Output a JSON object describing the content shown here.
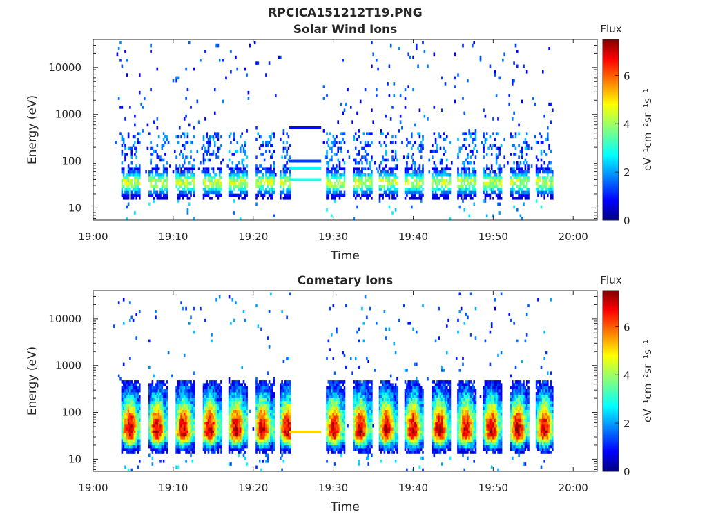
{
  "figure_title": "RPCICA151212T19.PNG",
  "chart_data": [
    {
      "type": "heatmap",
      "title": "Solar Wind Ions",
      "xlabel": "Time",
      "ylabel": "Energy (eV)",
      "x_ticks": [
        "19:00",
        "19:10",
        "19:20",
        "19:30",
        "19:40",
        "19:50",
        "20:00"
      ],
      "x_range_minutes": [
        0,
        63
      ],
      "y_scale": "log",
      "y_ticks": [
        {
          "value": 10,
          "label": "10"
        },
        {
          "value": 100,
          "label": "100"
        },
        {
          "value": 1000,
          "label": "1000"
        },
        {
          "value": 10000,
          "label": "10000"
        }
      ],
      "y_range": [
        5.5,
        40000
      ],
      "colorbar": {
        "title": "Flux",
        "label": "eV⁻¹cm⁻²sr⁻¹s⁻¹",
        "ticks": [
          "0",
          "2",
          "4",
          "6"
        ],
        "range": [
          0,
          7.5
        ],
        "colormap": "jet"
      },
      "data_window_minutes": [
        2.5,
        57.5
      ],
      "gap_minutes": [
        24.5,
        28.5
      ],
      "peak_energy_eV": 35,
      "bursts_start_minutes": [
        3.5,
        6.9,
        10.2,
        13.5,
        16.8,
        20.1,
        23.2,
        29.0,
        32.3,
        35.6,
        38.9,
        42.2,
        45.5,
        48.7,
        52.0,
        55.3
      ],
      "gap_lines": [
        {
          "energy_eV": 520,
          "level": 1.0
        },
        {
          "energy_eV": 100,
          "level": 1.4
        },
        {
          "energy_eV": 70,
          "level": 2.8
        },
        {
          "energy_eV": 40,
          "level": 3.0
        }
      ],
      "seed": 7
    },
    {
      "type": "heatmap",
      "title": "Cometary Ions",
      "xlabel": "Time",
      "ylabel": "Energy (eV)",
      "x_ticks": [
        "19:00",
        "19:10",
        "19:20",
        "19:30",
        "19:40",
        "19:50",
        "20:00"
      ],
      "x_range_minutes": [
        0,
        63
      ],
      "y_scale": "log",
      "y_ticks": [
        {
          "value": 10,
          "label": "10"
        },
        {
          "value": 100,
          "label": "100"
        },
        {
          "value": 1000,
          "label": "1000"
        },
        {
          "value": 10000,
          "label": "10000"
        }
      ],
      "y_range": [
        5.5,
        40000
      ],
      "colorbar": {
        "title": "Flux",
        "label": "eV⁻¹cm⁻²sr⁻¹s⁻¹",
        "ticks": [
          "0",
          "2",
          "4",
          "6"
        ],
        "range": [
          0,
          7.5
        ],
        "colormap": "jet"
      },
      "data_window_minutes": [
        2.5,
        57.5
      ],
      "gap_minutes": [
        24.5,
        28.5
      ],
      "peak_energy_eV": 35,
      "bursts_start_minutes": [
        3.5,
        6.9,
        10.2,
        13.5,
        16.8,
        20.1,
        23.2,
        29.0,
        32.3,
        35.6,
        38.9,
        42.2,
        45.5,
        48.7,
        52.0,
        55.3
      ],
      "gap_lines": [
        {
          "energy_eV": 38,
          "level": 5.0
        }
      ],
      "seed": 21
    }
  ]
}
